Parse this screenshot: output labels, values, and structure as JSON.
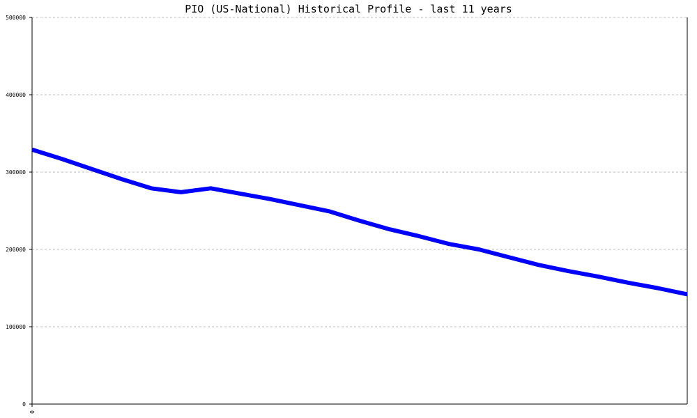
{
  "chart_data": {
    "type": "line",
    "title": "PIO (US-National) Historical Profile - last 11 years",
    "xlabel": "",
    "ylabel": "",
    "ylim": [
      0,
      500000
    ],
    "y_ticks": [
      "0",
      "100000",
      "200000",
      "300000",
      "400000",
      "500000"
    ],
    "x_ticks": [
      "0"
    ],
    "grid": true,
    "legend": "none",
    "series": [
      {
        "color": "#0000ff",
        "x": [
          0,
          1,
          2,
          3,
          4,
          5,
          6,
          7,
          8,
          9,
          10,
          11,
          12,
          13,
          14,
          15,
          16,
          17,
          18,
          19,
          20,
          21,
          22
        ],
        "values": [
          329000,
          317000,
          304000,
          291000,
          279000,
          274000,
          279000,
          272000,
          265000,
          257000,
          249000,
          237000,
          226000,
          217000,
          207000,
          200000,
          190000,
          180000,
          172000,
          165000,
          157000,
          150000,
          142000
        ]
      }
    ]
  }
}
